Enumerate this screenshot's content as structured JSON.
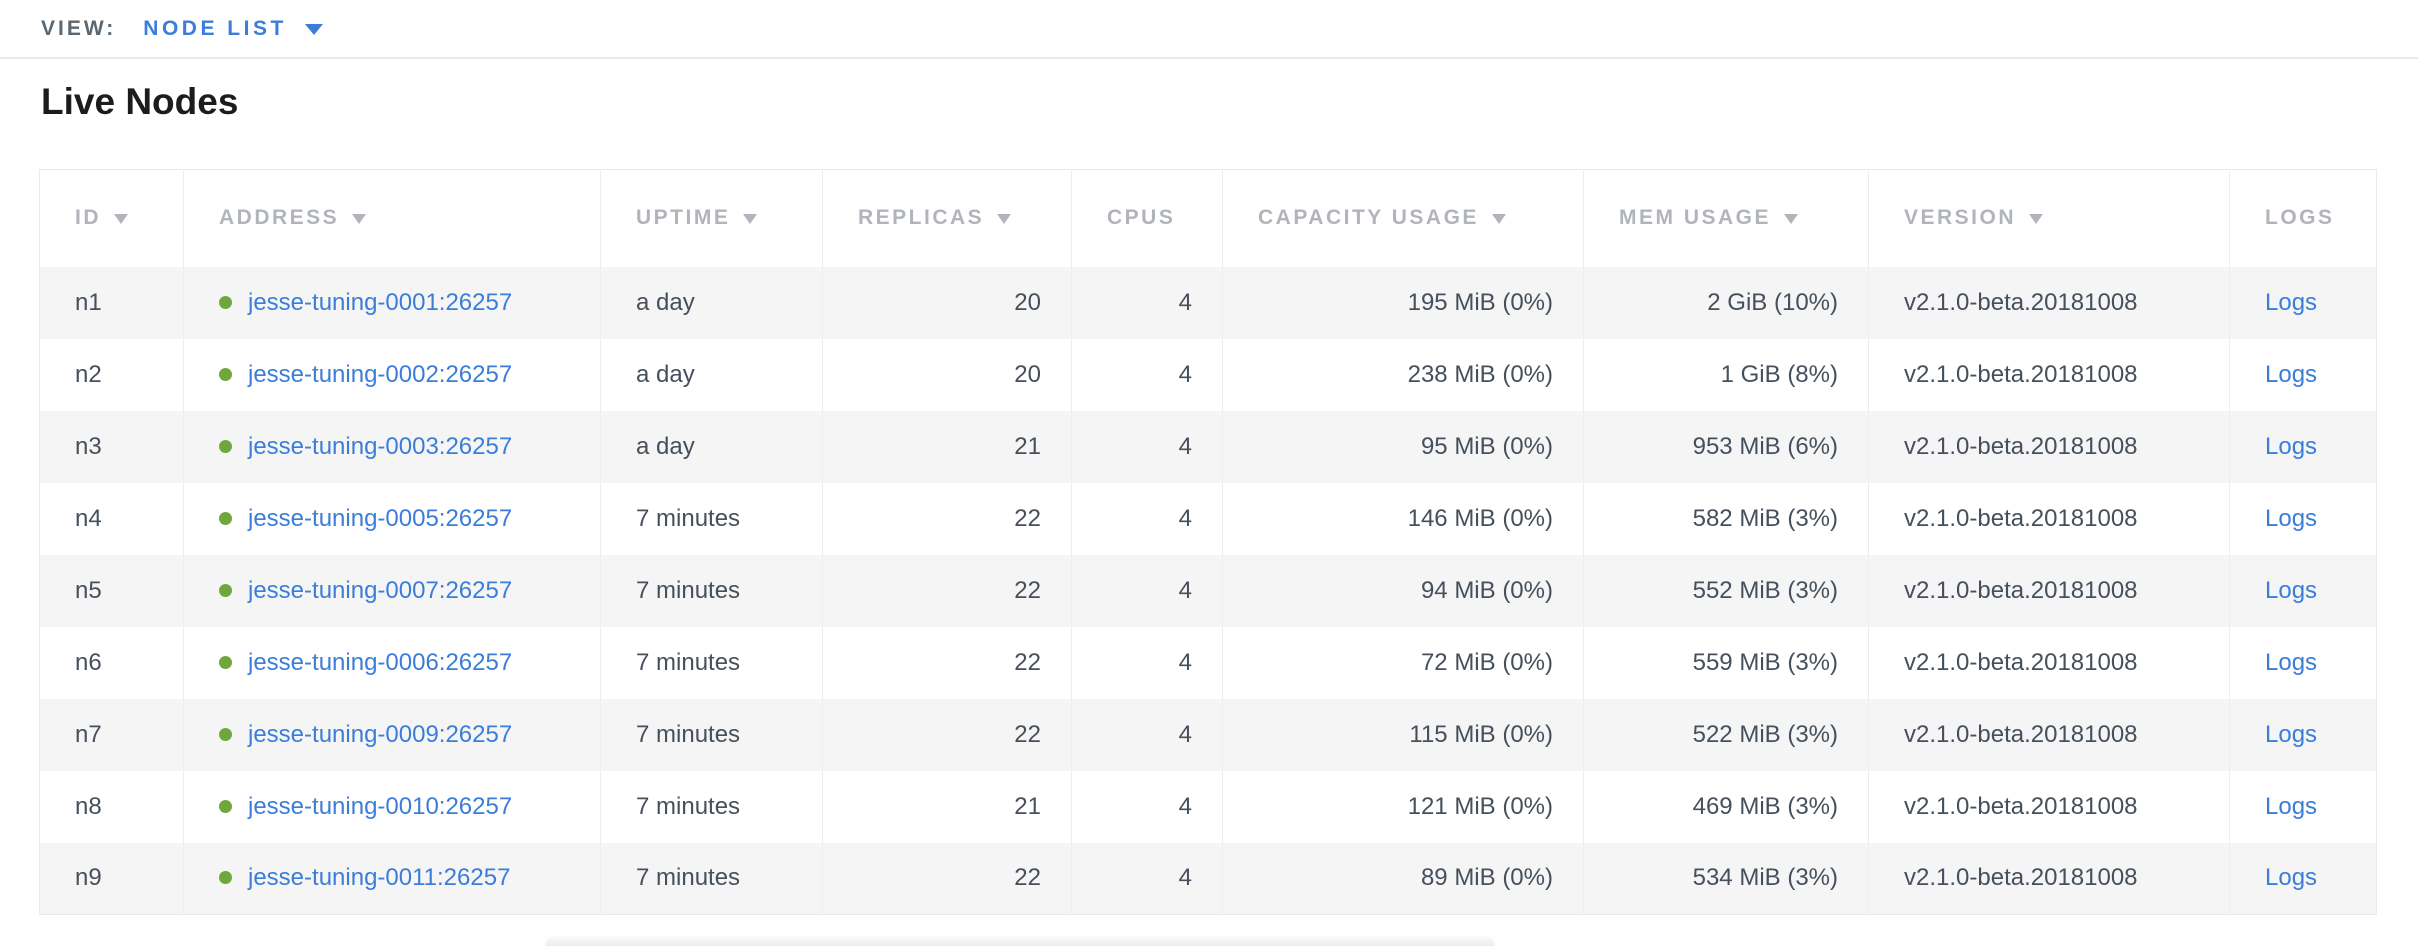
{
  "view_bar": {
    "label": "VIEW:",
    "selected": "NODE LIST"
  },
  "page": {
    "title": "Live Nodes"
  },
  "table": {
    "columns": [
      {
        "label": "ID",
        "sortable": true
      },
      {
        "label": "ADDRESS",
        "sortable": true
      },
      {
        "label": "UPTIME",
        "sortable": true
      },
      {
        "label": "REPLICAS",
        "sortable": true
      },
      {
        "label": "CPUS",
        "sortable": false
      },
      {
        "label": "CAPACITY USAGE",
        "sortable": true
      },
      {
        "label": "MEM USAGE",
        "sortable": true
      },
      {
        "label": "VERSION",
        "sortable": true
      },
      {
        "label": "LOGS",
        "sortable": false
      }
    ],
    "rows": [
      {
        "id": "n1",
        "address": "jesse-tuning-0001:26257",
        "uptime": "a day",
        "replicas": "20",
        "cpus": "4",
        "capacity_usage": "195 MiB (0%)",
        "mem_usage": "2 GiB (10%)",
        "version": "v2.1.0-beta.20181008",
        "logs": "Logs"
      },
      {
        "id": "n2",
        "address": "jesse-tuning-0002:26257",
        "uptime": "a day",
        "replicas": "20",
        "cpus": "4",
        "capacity_usage": "238 MiB (0%)",
        "mem_usage": "1 GiB (8%)",
        "version": "v2.1.0-beta.20181008",
        "logs": "Logs"
      },
      {
        "id": "n3",
        "address": "jesse-tuning-0003:26257",
        "uptime": "a day",
        "replicas": "21",
        "cpus": "4",
        "capacity_usage": "95 MiB (0%)",
        "mem_usage": "953 MiB (6%)",
        "version": "v2.1.0-beta.20181008",
        "logs": "Logs"
      },
      {
        "id": "n4",
        "address": "jesse-tuning-0005:26257",
        "uptime": "7 minutes",
        "replicas": "22",
        "cpus": "4",
        "capacity_usage": "146 MiB (0%)",
        "mem_usage": "582 MiB (3%)",
        "version": "v2.1.0-beta.20181008",
        "logs": "Logs"
      },
      {
        "id": "n5",
        "address": "jesse-tuning-0007:26257",
        "uptime": "7 minutes",
        "replicas": "22",
        "cpus": "4",
        "capacity_usage": "94 MiB (0%)",
        "mem_usage": "552 MiB (3%)",
        "version": "v2.1.0-beta.20181008",
        "logs": "Logs"
      },
      {
        "id": "n6",
        "address": "jesse-tuning-0006:26257",
        "uptime": "7 minutes",
        "replicas": "22",
        "cpus": "4",
        "capacity_usage": "72 MiB (0%)",
        "mem_usage": "559 MiB (3%)",
        "version": "v2.1.0-beta.20181008",
        "logs": "Logs"
      },
      {
        "id": "n7",
        "address": "jesse-tuning-0009:26257",
        "uptime": "7 minutes",
        "replicas": "22",
        "cpus": "4",
        "capacity_usage": "115 MiB (0%)",
        "mem_usage": "522 MiB (3%)",
        "version": "v2.1.0-beta.20181008",
        "logs": "Logs"
      },
      {
        "id": "n8",
        "address": "jesse-tuning-0010:26257",
        "uptime": "7 minutes",
        "replicas": "21",
        "cpus": "4",
        "capacity_usage": "121 MiB (0%)",
        "mem_usage": "469 MiB (3%)",
        "version": "v2.1.0-beta.20181008",
        "logs": "Logs"
      },
      {
        "id": "n9",
        "address": "jesse-tuning-0011:26257",
        "uptime": "7 minutes",
        "replicas": "22",
        "cpus": "4",
        "capacity_usage": "89 MiB (0%)",
        "mem_usage": "534 MiB (3%)",
        "version": "v2.1.0-beta.20181008",
        "logs": "Logs"
      }
    ]
  },
  "colors": {
    "link_blue": "#3B7DD8",
    "live_green": "#6EA83C",
    "header_text": "#B1B5BB",
    "body_text": "#46505C",
    "row_stripe": "#F5F5F6",
    "border": "#E9EAEC",
    "view_label": "#5B6771",
    "title_text": "#1C1C1C"
  }
}
